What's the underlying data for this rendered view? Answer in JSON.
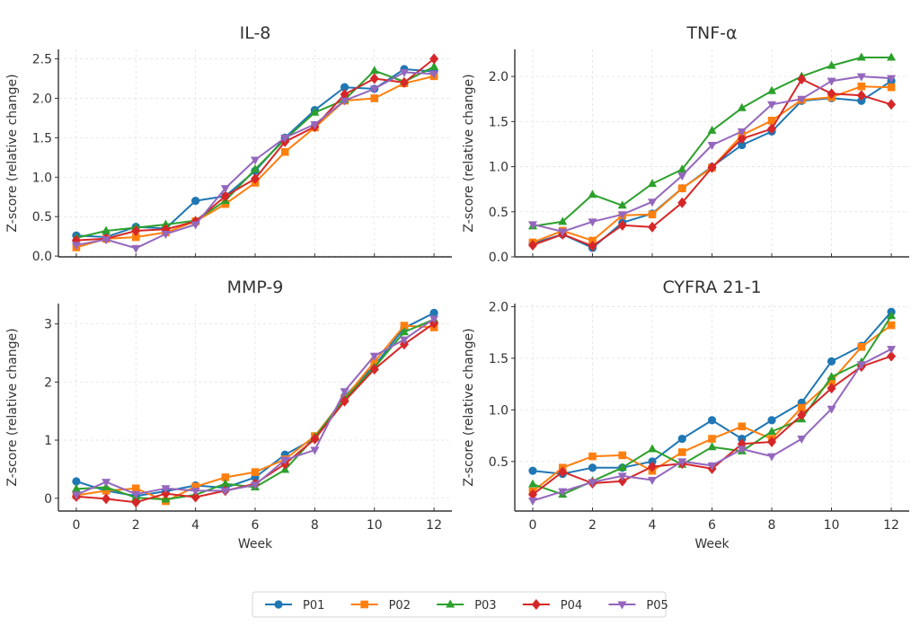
{
  "chart_data": [
    {
      "type": "line",
      "title": "IL-8",
      "xlabel": "",
      "ylabel": "Z-score (relative change)",
      "x": [
        0,
        1,
        2,
        3,
        4,
        5,
        6,
        7,
        8,
        9,
        10,
        11,
        12
      ],
      "xlim": [
        -0.6,
        12.6
      ],
      "ylim": [
        -0.01,
        2.62
      ],
      "yticks": [
        0.0,
        0.5,
        1.0,
        1.5,
        2.0,
        2.5
      ],
      "ytick_labels": [
        "0.0",
        "0.5",
        "1.0",
        "1.5",
        "2.0",
        "2.5"
      ],
      "xticks": [
        0,
        2,
        4,
        6,
        8,
        10,
        12
      ],
      "xtick_labels": [],
      "grid": true,
      "series": [
        {
          "name": "P01",
          "values": [
            0.26,
            0.24,
            0.37,
            0.35,
            0.7,
            0.76,
            1.08,
            1.5,
            1.85,
            2.14,
            2.12,
            2.37,
            2.34
          ]
        },
        {
          "name": "P02",
          "values": [
            0.11,
            0.22,
            0.24,
            0.3,
            0.44,
            0.66,
            0.93,
            1.32,
            1.63,
            1.97,
            2.0,
            2.19,
            2.28
          ]
        },
        {
          "name": "P03",
          "values": [
            0.23,
            0.32,
            0.36,
            0.4,
            0.45,
            0.7,
            1.1,
            1.48,
            1.82,
            1.98,
            2.35,
            2.21,
            2.4
          ]
        },
        {
          "name": "P04",
          "values": [
            0.2,
            0.22,
            0.32,
            0.34,
            0.44,
            0.76,
            0.98,
            1.45,
            1.64,
            2.05,
            2.25,
            2.2,
            2.5
          ]
        },
        {
          "name": "P05",
          "values": [
            0.14,
            0.21,
            0.1,
            0.28,
            0.4,
            0.86,
            1.22,
            1.5,
            1.67,
            1.97,
            2.12,
            2.33,
            2.31
          ]
        }
      ]
    },
    {
      "type": "line",
      "title": "TNF-α",
      "xlabel": "",
      "ylabel": "Z-score (relative change)",
      "x": [
        0,
        1,
        2,
        3,
        4,
        5,
        6,
        7,
        8,
        9,
        10,
        11,
        12
      ],
      "xlim": [
        -0.6,
        12.6
      ],
      "ylim": [
        0.0,
        2.3
      ],
      "yticks": [
        0.0,
        0.5,
        1.0,
        1.5,
        2.0
      ],
      "ytick_labels": [
        "0.0",
        "0.5",
        "1.0",
        "1.5",
        "2.0"
      ],
      "xticks": [
        0,
        2,
        4,
        6,
        8,
        10,
        12
      ],
      "xtick_labels": [],
      "grid": true,
      "series": [
        {
          "name": "P01",
          "values": [
            0.15,
            0.25,
            0.1,
            0.38,
            0.48,
            0.76,
            1.0,
            1.24,
            1.39,
            1.73,
            1.76,
            1.73,
            1.95
          ]
        },
        {
          "name": "P02",
          "values": [
            0.16,
            0.29,
            0.18,
            0.46,
            0.47,
            0.76,
            0.99,
            1.35,
            1.51,
            1.74,
            1.77,
            1.89,
            1.88
          ]
        },
        {
          "name": "P03",
          "values": [
            0.34,
            0.39,
            0.69,
            0.57,
            0.81,
            0.97,
            1.4,
            1.65,
            1.84,
            2.0,
            2.12,
            2.21,
            2.21
          ]
        },
        {
          "name": "P04",
          "values": [
            0.13,
            0.25,
            0.12,
            0.35,
            0.33,
            0.6,
            0.99,
            1.31,
            1.42,
            1.97,
            1.81,
            1.79,
            1.69
          ]
        },
        {
          "name": "P05",
          "values": [
            0.36,
            0.28,
            0.39,
            0.47,
            0.61,
            0.9,
            1.24,
            1.39,
            1.69,
            1.75,
            1.95,
            2.0,
            1.98
          ]
        }
      ]
    },
    {
      "type": "line",
      "title": "MMP-9",
      "xlabel": "Week",
      "ylabel": "Z-score (relative change)",
      "x": [
        0,
        1,
        2,
        3,
        4,
        5,
        6,
        7,
        8,
        9,
        10,
        11,
        12
      ],
      "xlim": [
        -0.6,
        12.6
      ],
      "ylim": [
        -0.22,
        3.35
      ],
      "yticks": [
        0,
        1,
        2,
        3
      ],
      "ytick_labels": [
        "0",
        "1",
        "2",
        "3"
      ],
      "xticks": [
        0,
        2,
        4,
        6,
        8,
        10,
        12
      ],
      "xtick_labels": [
        "0",
        "2",
        "4",
        "6",
        "8",
        "10",
        "12"
      ],
      "grid": true,
      "series": [
        {
          "name": "P01",
          "values": [
            0.29,
            0.13,
            0.04,
            0.12,
            0.22,
            0.18,
            0.36,
            0.75,
            1.03,
            1.75,
            2.28,
            2.93,
            3.19
          ]
        },
        {
          "name": "P02",
          "values": [
            0.05,
            0.13,
            0.17,
            -0.05,
            0.2,
            0.36,
            0.45,
            0.67,
            1.07,
            1.72,
            2.35,
            2.97,
            2.94
          ]
        },
        {
          "name": "P03",
          "values": [
            0.16,
            0.19,
            0.01,
            -0.02,
            0.06,
            0.25,
            0.19,
            0.49,
            1.05,
            1.71,
            2.25,
            2.86,
            3.08
          ]
        },
        {
          "name": "P04",
          "values": [
            0.03,
            -0.01,
            -0.07,
            0.08,
            0.02,
            0.13,
            0.25,
            0.59,
            1.02,
            1.67,
            2.22,
            2.65,
            3.01
          ]
        },
        {
          "name": "P05",
          "values": [
            0.06,
            0.28,
            0.07,
            0.17,
            0.13,
            0.13,
            0.23,
            0.66,
            0.83,
            1.84,
            2.45,
            2.73,
            3.09
          ]
        }
      ]
    },
    {
      "type": "line",
      "title": "CYFRA 21-1",
      "xlabel": "Week",
      "ylabel": "Z-score (relative change)",
      "x": [
        0,
        1,
        2,
        3,
        4,
        5,
        6,
        7,
        8,
        9,
        10,
        11,
        12
      ],
      "xlim": [
        -0.6,
        12.6
      ],
      "ylim": [
        0.02,
        2.03
      ],
      "yticks": [
        0.5,
        1.0,
        1.5,
        2.0
      ],
      "ytick_labels": [
        "0.5",
        "1.0",
        "1.5",
        "2.0"
      ],
      "xticks": [
        0,
        2,
        4,
        6,
        8,
        10,
        12
      ],
      "xtick_labels": [
        "0",
        "2",
        "4",
        "6",
        "8",
        "10",
        "12"
      ],
      "grid": true,
      "series": [
        {
          "name": "P01",
          "values": [
            0.41,
            0.38,
            0.44,
            0.44,
            0.5,
            0.72,
            0.9,
            0.72,
            0.9,
            1.07,
            1.47,
            1.62,
            1.95
          ]
        },
        {
          "name": "P02",
          "values": [
            0.21,
            0.44,
            0.55,
            0.56,
            0.41,
            0.59,
            0.72,
            0.84,
            0.72,
            1.02,
            1.28,
            1.61,
            1.82
          ]
        },
        {
          "name": "P03",
          "values": [
            0.28,
            0.18,
            0.31,
            0.44,
            0.62,
            0.47,
            0.64,
            0.6,
            0.79,
            0.91,
            1.32,
            1.46,
            1.91
          ]
        },
        {
          "name": "P04",
          "values": [
            0.18,
            0.4,
            0.29,
            0.31,
            0.45,
            0.48,
            0.43,
            0.67,
            0.69,
            0.95,
            1.21,
            1.42,
            1.52
          ]
        },
        {
          "name": "P05",
          "values": [
            0.12,
            0.21,
            0.3,
            0.36,
            0.32,
            0.5,
            0.46,
            0.62,
            0.55,
            0.72,
            1.01,
            1.44,
            1.59
          ]
        }
      ]
    }
  ],
  "legend": {
    "position": "bottom-center",
    "entries": [
      {
        "name": "P01",
        "color": "#1f77b4",
        "marker": "circle"
      },
      {
        "name": "P02",
        "color": "#ff7f0e",
        "marker": "square"
      },
      {
        "name": "P03",
        "color": "#2ca02c",
        "marker": "triangle-up"
      },
      {
        "name": "P04",
        "color": "#d62728",
        "marker": "diamond"
      },
      {
        "name": "P05",
        "color": "#9467bd",
        "marker": "triangle-down"
      }
    ]
  }
}
